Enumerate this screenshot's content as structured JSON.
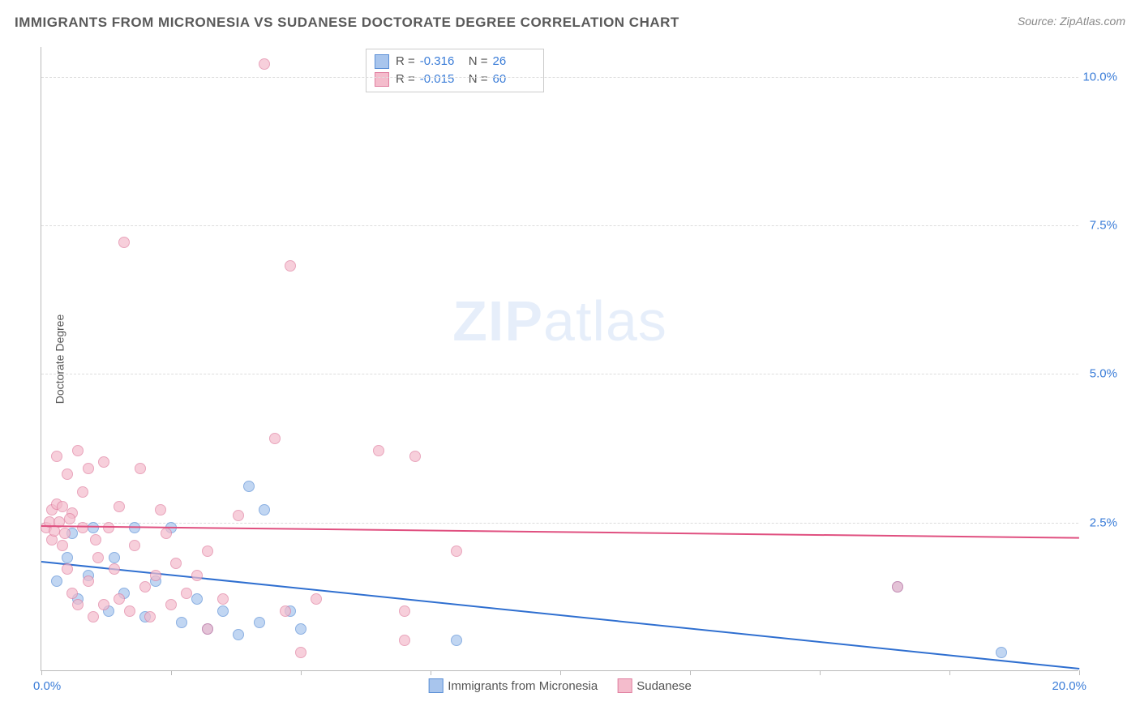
{
  "header": {
    "title": "IMMIGRANTS FROM MICRONESIA VS SUDANESE DOCTORATE DEGREE CORRELATION CHART",
    "source": "Source: ZipAtlas.com"
  },
  "chart": {
    "type": "scatter",
    "ylabel": "Doctorate Degree",
    "watermark_bold": "ZIP",
    "watermark_light": "atlas",
    "background_color": "#ffffff",
    "grid_color": "#dddddd",
    "axis_color": "#bbbbbb",
    "tick_color": "#3b7dd8",
    "xlim": [
      0,
      20
    ],
    "ylim": [
      0,
      10.5
    ],
    "xticks": [
      0,
      2.5,
      5,
      7.5,
      10,
      12.5,
      15,
      17.5,
      20
    ],
    "xtick_labels": {
      "left": "0.0%",
      "right": "20.0%"
    },
    "yticks": [
      2.5,
      5.0,
      7.5,
      10.0
    ],
    "ytick_labels": [
      "2.5%",
      "5.0%",
      "7.5%",
      "10.0%"
    ],
    "series": [
      {
        "name": "Immigrants from Micronesia",
        "fill": "#a8c5ed",
        "stroke": "#5b8fd6",
        "line_color": "#2f6fd0",
        "r_label": "R =",
        "r_value": "-0.316",
        "n_label": "N =",
        "n_value": "26",
        "trend": {
          "x1": 0,
          "y1": 1.85,
          "x2": 20,
          "y2": 0.05
        },
        "points": [
          [
            0.3,
            1.5
          ],
          [
            0.5,
            1.9
          ],
          [
            0.6,
            2.3
          ],
          [
            0.7,
            1.2
          ],
          [
            0.9,
            1.6
          ],
          [
            1.0,
            2.4
          ],
          [
            1.3,
            1.0
          ],
          [
            1.4,
            1.9
          ],
          [
            1.6,
            1.3
          ],
          [
            1.8,
            2.4
          ],
          [
            2.0,
            0.9
          ],
          [
            2.2,
            1.5
          ],
          [
            2.5,
            2.4
          ],
          [
            2.7,
            0.8
          ],
          [
            3.0,
            1.2
          ],
          [
            3.2,
            0.7
          ],
          [
            3.5,
            1.0
          ],
          [
            3.8,
            0.6
          ],
          [
            4.0,
            3.1
          ],
          [
            4.3,
            2.7
          ],
          [
            4.2,
            0.8
          ],
          [
            4.8,
            1.0
          ],
          [
            5.0,
            0.7
          ],
          [
            8.0,
            0.5
          ],
          [
            16.5,
            1.4
          ],
          [
            18.5,
            0.3
          ]
        ]
      },
      {
        "name": "Sudanese",
        "fill": "#f4bccc",
        "stroke": "#e07fa0",
        "line_color": "#e05080",
        "r_label": "R =",
        "r_value": "-0.015",
        "n_label": "N =",
        "n_value": "60",
        "trend": {
          "x1": 0,
          "y1": 2.45,
          "x2": 20,
          "y2": 2.25
        },
        "points": [
          [
            0.1,
            2.4
          ],
          [
            0.15,
            2.5
          ],
          [
            0.2,
            2.2
          ],
          [
            0.2,
            2.7
          ],
          [
            0.25,
            2.35
          ],
          [
            0.3,
            2.8
          ],
          [
            0.3,
            3.6
          ],
          [
            0.35,
            2.5
          ],
          [
            0.4,
            2.1
          ],
          [
            0.4,
            2.75
          ],
          [
            0.5,
            3.3
          ],
          [
            0.5,
            1.7
          ],
          [
            0.6,
            1.3
          ],
          [
            0.6,
            2.65
          ],
          [
            0.7,
            3.7
          ],
          [
            0.7,
            1.1
          ],
          [
            0.8,
            2.4
          ],
          [
            0.9,
            1.5
          ],
          [
            0.9,
            3.4
          ],
          [
            1.0,
            0.9
          ],
          [
            1.1,
            1.9
          ],
          [
            1.2,
            3.5
          ],
          [
            1.2,
            1.1
          ],
          [
            1.3,
            2.4
          ],
          [
            1.4,
            1.7
          ],
          [
            1.5,
            2.75
          ],
          [
            1.5,
            1.2
          ],
          [
            1.6,
            7.2
          ],
          [
            1.7,
            1.0
          ],
          [
            1.8,
            2.1
          ],
          [
            1.9,
            3.4
          ],
          [
            2.0,
            1.4
          ],
          [
            2.1,
            0.9
          ],
          [
            2.2,
            1.6
          ],
          [
            2.3,
            2.7
          ],
          [
            2.5,
            1.1
          ],
          [
            2.6,
            1.8
          ],
          [
            2.8,
            1.3
          ],
          [
            3.0,
            1.6
          ],
          [
            3.2,
            0.7
          ],
          [
            3.2,
            2.0
          ],
          [
            3.5,
            1.2
          ],
          [
            3.8,
            2.6
          ],
          [
            4.3,
            10.2
          ],
          [
            4.5,
            3.9
          ],
          [
            4.7,
            1.0
          ],
          [
            4.8,
            6.8
          ],
          [
            5.0,
            0.3
          ],
          [
            5.3,
            1.2
          ],
          [
            6.5,
            3.7
          ],
          [
            7.0,
            0.5
          ],
          [
            7.0,
            1.0
          ],
          [
            7.2,
            3.6
          ],
          [
            8.0,
            2.0
          ],
          [
            16.5,
            1.4
          ],
          [
            2.4,
            2.3
          ],
          [
            0.55,
            2.55
          ],
          [
            0.8,
            3.0
          ],
          [
            1.05,
            2.2
          ],
          [
            0.45,
            2.3
          ]
        ]
      }
    ]
  }
}
